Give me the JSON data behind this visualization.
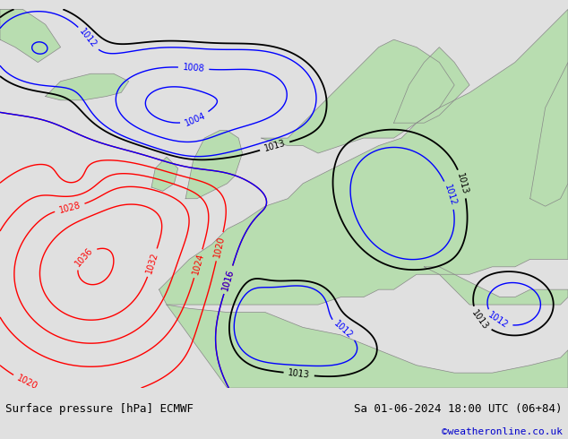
{
  "title_left": "Surface pressure [hPa] ECMWF",
  "title_right": "Sa 01-06-2024 18:00 UTC (06+84)",
  "credit": "©weatheronline.co.uk",
  "credit_color": "#0000cc",
  "bg_map_color": "#c8c8c8",
  "land_color": "#b8ddb0",
  "sea_color": "#d0d8e8",
  "ocean_color": "#d4dce8",
  "figsize": [
    6.34,
    4.9
  ],
  "dpi": 100,
  "bottom_bar_color": "#e0e0e0",
  "bottom_bar_height": 0.1
}
